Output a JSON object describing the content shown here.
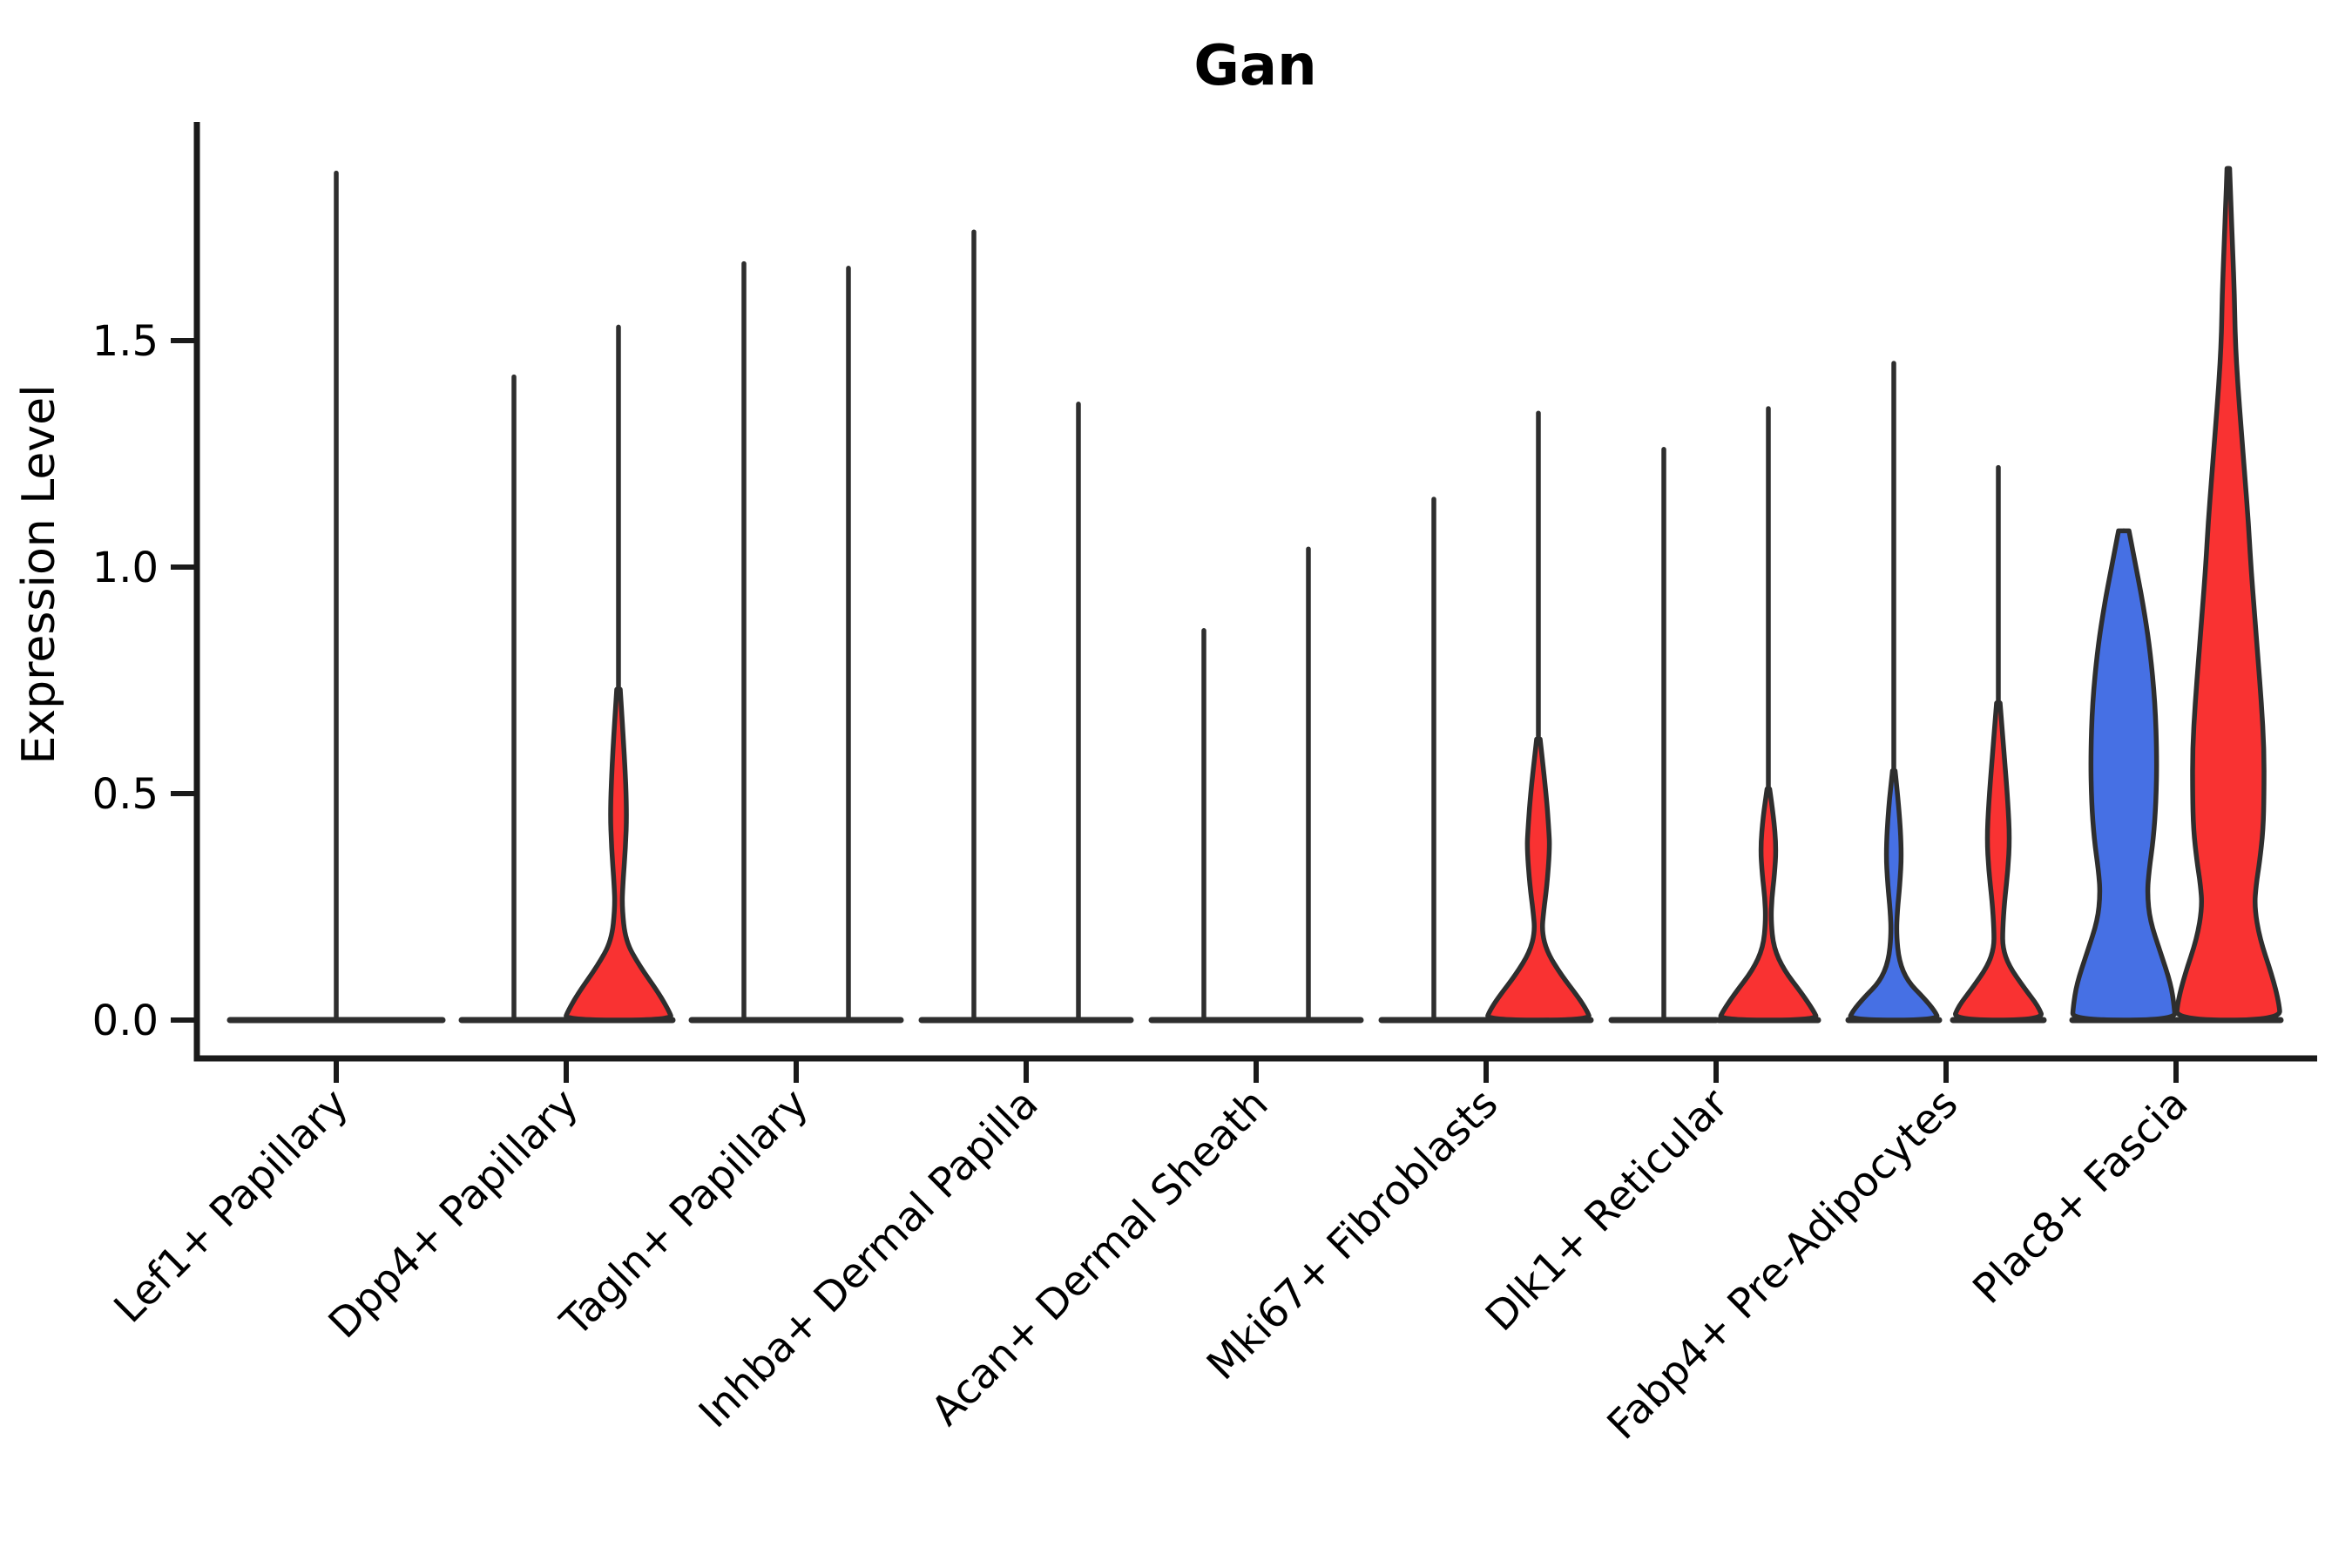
{
  "title": "Gan",
  "y_axis": {
    "label": "Expression Level",
    "tick_labels": [
      "0.0",
      "0.5",
      "1.0",
      "1.5"
    ],
    "tick_values": [
      0.0,
      0.5,
      1.0,
      1.5
    ]
  },
  "colors": {
    "blue_fill": "#4670E4",
    "red_fill": "#F93232",
    "outline": "#2E2E2E",
    "axis": "#1a1a1a",
    "text": "#000000",
    "background": "#ffffff"
  },
  "chart_data": {
    "type": "violin",
    "title": "Gan",
    "xlabel": "",
    "ylabel": "Expression Level",
    "ylim": [
      -0.08,
      1.98
    ],
    "yticks": [
      0.0,
      0.5,
      1.0,
      1.5
    ],
    "grid": false,
    "legend": "none",
    "split_groups": [
      "blue",
      "red"
    ],
    "categories": [
      {
        "label": "Lef1+ Papillary",
        "violins": [
          {
            "group": "blue",
            "side": "full",
            "max": 1.87,
            "base_halfwidth": 122,
            "profile": null
          }
        ]
      },
      {
        "label": "Dpp4+ Papillary",
        "violins": [
          {
            "group": "blue",
            "side": "left",
            "max": 1.42,
            "base_halfwidth": 60,
            "profile": null
          },
          {
            "group": "red",
            "side": "right",
            "max": 1.53,
            "base_halfwidth": 62,
            "profile": [
              [
                0.73,
                2
              ],
              [
                0.58,
                7
              ],
              [
                0.46,
                9.5
              ],
              [
                0.38,
                8
              ],
              [
                0.3,
                5
              ],
              [
                0.25,
                4
              ],
              [
                0.175,
                8
              ],
              [
                0.12,
                24
              ],
              [
                0.06,
                46
              ],
              [
                0.02,
                58
              ],
              [
                0,
                62
              ]
            ]
          }
        ]
      },
      {
        "label": "Tagln+ Papillary",
        "violins": [
          {
            "group": "blue",
            "side": "left",
            "max": 1.67,
            "base_halfwidth": 60,
            "profile": null
          },
          {
            "group": "red",
            "side": "right",
            "max": 1.66,
            "base_halfwidth": 60,
            "profile": null
          }
        ]
      },
      {
        "label": "Inhba+ Dermal Papilla",
        "violins": [
          {
            "group": "blue",
            "side": "left",
            "max": 1.74,
            "base_halfwidth": 60,
            "profile": null
          },
          {
            "group": "red",
            "side": "right",
            "max": 1.36,
            "base_halfwidth": 60,
            "profile": null
          }
        ]
      },
      {
        "label": "Acan+ Dermal Sheath",
        "violins": [
          {
            "group": "blue",
            "side": "left",
            "max": 0.86,
            "base_halfwidth": 60,
            "profile": null
          },
          {
            "group": "red",
            "side": "right",
            "max": 1.04,
            "base_halfwidth": 60,
            "profile": null
          }
        ]
      },
      {
        "label": "Mki67+ Fibroblasts",
        "violins": [
          {
            "group": "blue",
            "side": "left",
            "max": 1.15,
            "base_halfwidth": 60,
            "profile": null
          },
          {
            "group": "red",
            "side": "right",
            "max": 1.34,
            "base_halfwidth": 60,
            "profile": [
              [
                0.62,
                2
              ],
              [
                0.5,
                9
              ],
              [
                0.42,
                12
              ],
              [
                0.38,
                13
              ],
              [
                0.3,
                10
              ],
              [
                0.24,
                6
              ],
              [
                0.195,
                4
              ],
              [
                0.15,
                10
              ],
              [
                0.1,
                26
              ],
              [
                0.05,
                46
              ],
              [
                0.02,
                56
              ],
              [
                0,
                60
              ]
            ]
          }
        ]
      },
      {
        "label": "Dlk1+ Reticular",
        "violins": [
          {
            "group": "blue",
            "side": "left",
            "max": 1.26,
            "base_halfwidth": 60,
            "profile": null
          },
          {
            "group": "red",
            "side": "right",
            "max": 1.35,
            "base_halfwidth": 57,
            "profile": [
              [
                0.51,
                1.5
              ],
              [
                0.45,
                6
              ],
              [
                0.38,
                9
              ],
              [
                0.32,
                7
              ],
              [
                0.27,
                4
              ],
              [
                0.22,
                3
              ],
              [
                0.16,
                6
              ],
              [
                0.11,
                18
              ],
              [
                0.06,
                38
              ],
              [
                0.02,
                52
              ],
              [
                0,
                57
              ]
            ]
          }
        ]
      },
      {
        "label": "Fabp4+ Pre-Adipocytes",
        "violins": [
          {
            "group": "blue",
            "side": "left",
            "max": 1.45,
            "base_halfwidth": 52,
            "profile": [
              [
                0.55,
                1.5
              ],
              [
                0.47,
                6
              ],
              [
                0.37,
                9
              ],
              [
                0.3,
                7
              ],
              [
                0.24,
                4
              ],
              [
                0.19,
                3
              ],
              [
                0.13,
                6
              ],
              [
                0.085,
                16
              ],
              [
                0.05,
                34
              ],
              [
                0.02,
                47
              ],
              [
                0,
                52
              ]
            ]
          },
          {
            "group": "red",
            "side": "right",
            "max": 1.22,
            "base_halfwidth": 52,
            "profile": [
              [
                0.7,
                2
              ],
              [
                0.58,
                7
              ],
              [
                0.48,
                11
              ],
              [
                0.4,
                13
              ],
              [
                0.33,
                11
              ],
              [
                0.26,
                7
              ],
              [
                0.2,
                5
              ],
              [
                0.16,
                5
              ],
              [
                0.12,
                12
              ],
              [
                0.07,
                30
              ],
              [
                0.03,
                46
              ],
              [
                0,
                52
              ]
            ]
          }
        ]
      },
      {
        "label": "Plac8+ Fascia",
        "violins": [
          {
            "group": "blue",
            "side": "left",
            "max": 1.08,
            "base_halfwidth": 59,
            "profile": [
              [
                1.08,
                6
              ],
              [
                1.05,
                9
              ],
              [
                1.0,
                14
              ],
              [
                0.92,
                22
              ],
              [
                0.82,
                30
              ],
              [
                0.7,
                36
              ],
              [
                0.58,
                38
              ],
              [
                0.48,
                37
              ],
              [
                0.4,
                34
              ],
              [
                0.33,
                29
              ],
              [
                0.28,
                27
              ],
              [
                0.22,
                30
              ],
              [
                0.15,
                42
              ],
              [
                0.08,
                54
              ],
              [
                0.03,
                58
              ],
              [
                0,
                59
              ]
            ]
          },
          {
            "group": "red",
            "side": "right",
            "max": 1.88,
            "base_halfwidth": 60,
            "profile": [
              [
                1.88,
                1.5
              ],
              [
                1.8,
                3
              ],
              [
                1.7,
                5
              ],
              [
                1.6,
                7
              ],
              [
                1.5,
                8
              ],
              [
                1.4,
                11
              ],
              [
                1.3,
                15
              ],
              [
                1.2,
                19
              ],
              [
                1.1,
                23
              ],
              [
                1.0,
                26
              ],
              [
                0.9,
                30
              ],
              [
                0.8,
                34
              ],
              [
                0.7,
                38
              ],
              [
                0.6,
                41
              ],
              [
                0.5,
                41
              ],
              [
                0.42,
                40
              ],
              [
                0.35,
                36
              ],
              [
                0.3,
                32
              ],
              [
                0.25,
                30
              ],
              [
                0.18,
                36
              ],
              [
                0.1,
                50
              ],
              [
                0.04,
                58
              ],
              [
                0,
                60
              ]
            ]
          }
        ]
      }
    ]
  }
}
